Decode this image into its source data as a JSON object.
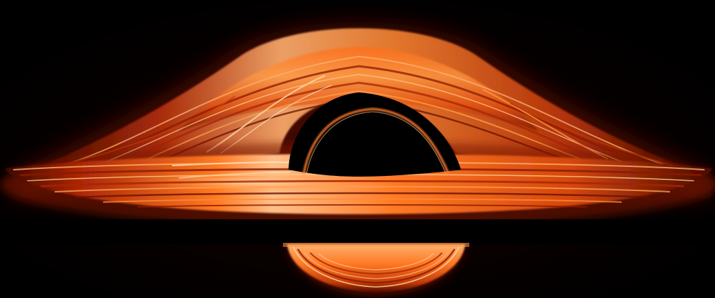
{
  "image": {
    "subject": "black-hole-accretion-disk",
    "colors": {
      "background": "#000000",
      "shadow": "#000000",
      "disk_dark": "#5a0d00",
      "disk_mid": "#c23a06",
      "disk_bright": "#ff8a2a",
      "disk_hot": "#ffd7a0",
      "photon_ring": "#ff7a2a"
    }
  }
}
